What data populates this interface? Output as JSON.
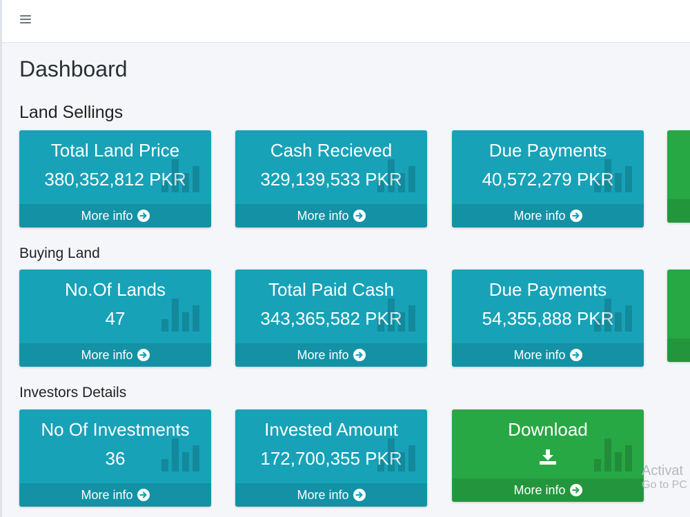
{
  "header": {
    "menu_icon": "hamburger-icon"
  },
  "page_title": "Dashboard",
  "sections": {
    "land_sellings": {
      "title": "Land Sellings",
      "boxes": [
        {
          "title": "Total Land Price",
          "value": "380,352,812 PKR",
          "footer": "More info"
        },
        {
          "title": "Cash Recieved",
          "value": "329,139,533 PKR",
          "footer": "More info"
        },
        {
          "title": "Due Payments",
          "value": "40,572,279 PKR",
          "footer": "More info"
        }
      ]
    },
    "buying_land": {
      "title": "Buying Land",
      "boxes": [
        {
          "title": "No.Of Lands",
          "value": "47",
          "footer": "More info"
        },
        {
          "title": "Total Paid Cash",
          "value": "343,365,582 PKR",
          "footer": "More info"
        },
        {
          "title": "Due Payments",
          "value": "54,355,888 PKR",
          "footer": "More info"
        }
      ]
    },
    "investors_details": {
      "title": "Investors Details",
      "boxes": [
        {
          "title": "No Of Investments",
          "value": "36",
          "footer": "More info"
        },
        {
          "title": "Invested Amount",
          "value": "172,700,355 PKR",
          "footer": "More info"
        },
        {
          "title": "Download",
          "icon": "download-icon",
          "footer": "More info"
        }
      ]
    }
  },
  "icons": {
    "card_background": "bar-chart-icon",
    "footer_arrow": "arrow-circle-right-icon"
  },
  "colors": {
    "info": "#17a2b8",
    "success": "#28a745",
    "background": "#f4f6f9"
  },
  "watermark": {
    "line1": "Activat",
    "line2": "Go to PC"
  }
}
